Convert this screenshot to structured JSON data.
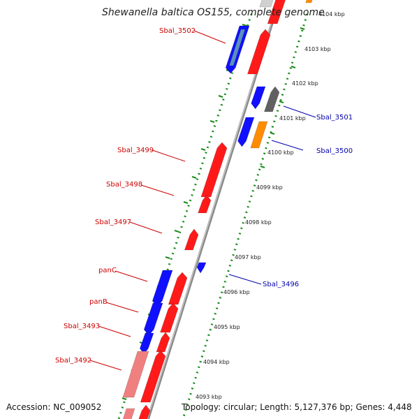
{
  "title": "Shewanella baltica OS155, complete genome",
  "footer": {
    "accession": "Accession: NC_009052",
    "topology": "Topology: circular; Length: 5,127,376 bp; Genes: 4,448"
  },
  "colors": {
    "forward": "#ff1a1a",
    "reverse": "#1010ff",
    "pseudo": "#f08080",
    "other": "#606060",
    "orange": "#ff8c00",
    "ruler": "#1a8a1a",
    "backbone": "#888888",
    "label_left": "#cc0000",
    "label_right": "#0000aa"
  },
  "ticks": [
    {
      "label": "4104 kbp",
      "kbp": 4104
    },
    {
      "label": "4103 kbp",
      "kbp": 4103
    },
    {
      "label": "4102 kbp",
      "kbp": 4102
    },
    {
      "label": "4101 kbp",
      "kbp": 4101
    },
    {
      "label": "4100 kbp",
      "kbp": 4100
    },
    {
      "label": "4099 kbp",
      "kbp": 4099
    },
    {
      "label": "4098 kbp",
      "kbp": 4098
    },
    {
      "label": "4097 kbp",
      "kbp": 4097
    },
    {
      "label": "4096 kbp",
      "kbp": 4096
    },
    {
      "label": "4095 kbp",
      "kbp": 4095
    },
    {
      "label": "4094 kbp",
      "kbp": 4094
    },
    {
      "label": "4093 kbp",
      "kbp": 4093
    }
  ],
  "gene_labels": [
    {
      "text": "Sbal_3502",
      "side": "left"
    },
    {
      "text": "Sbal_3501",
      "side": "right"
    },
    {
      "text": "Sbal_3500",
      "side": "right"
    },
    {
      "text": "Sbal_3499",
      "side": "left"
    },
    {
      "text": "Sbal_3498",
      "side": "left"
    },
    {
      "text": "Sbal_3497",
      "side": "left"
    },
    {
      "text": "Sbal_3496",
      "side": "right"
    },
    {
      "text": "panC",
      "side": "left"
    },
    {
      "text": "panB",
      "side": "left"
    },
    {
      "text": "Sbal_3493",
      "side": "left"
    },
    {
      "text": "Sbal_3492",
      "side": "left"
    }
  ]
}
